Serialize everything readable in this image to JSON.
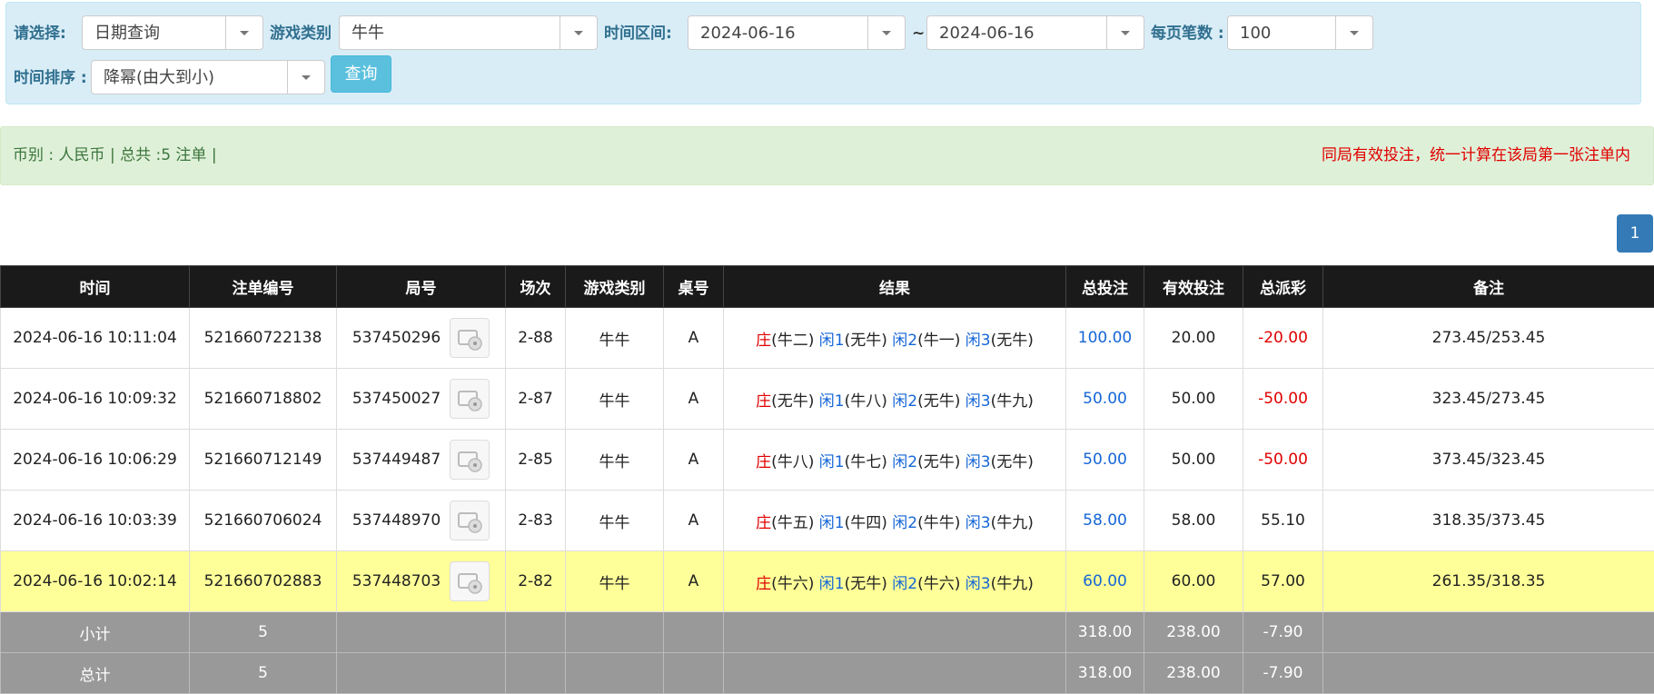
{
  "filters": {
    "select_label": "请选择:",
    "query_type": "日期查询",
    "game_label": "游戏类别",
    "game": "牛牛",
    "range_label": "时间区间:",
    "date_from": "2024-06-16",
    "range_sep": "~",
    "date_to": "2024-06-16",
    "per_page_label": "每页笔数 :",
    "per_page": "100",
    "sort_label": "时间排序 :",
    "sort": "降幂(由大到小)",
    "button": "查询"
  },
  "summary": {
    "text": "币别 : 人民币 | 总共 :5 注单 |",
    "notice": "同局有效投注，统一计算在该局第一张注单内"
  },
  "pagination": [
    "1"
  ],
  "table": {
    "headers": [
      "时间",
      "注单编号",
      "局号",
      "场次",
      "游戏类别",
      "桌号",
      "结果",
      "总投注",
      "有效投注",
      "总派彩",
      "备注"
    ],
    "rows": [
      [
        "2024-06-16 10:11:04",
        "521660722138",
        "537450296",
        "2-88",
        "牛牛",
        "A",
        [
          [
            "庄",
            "(牛二)"
          ],
          [
            "闲1",
            "(无牛)"
          ],
          [
            "闲2",
            "(牛一)"
          ],
          [
            "闲3",
            "(无牛)"
          ]
        ],
        "100.00",
        "20.00",
        "-20.00",
        "273.45/253.45"
      ],
      [
        "2024-06-16 10:09:32",
        "521660718802",
        "537450027",
        "2-87",
        "牛牛",
        "A",
        [
          [
            "庄",
            "(无牛)"
          ],
          [
            "闲1",
            "(牛八)"
          ],
          [
            "闲2",
            "(无牛)"
          ],
          [
            "闲3",
            "(牛九)"
          ]
        ],
        "50.00",
        "50.00",
        "-50.00",
        "323.45/273.45"
      ],
      [
        "2024-06-16 10:06:29",
        "521660712149",
        "537449487",
        "2-85",
        "牛牛",
        "A",
        [
          [
            "庄",
            "(牛八)"
          ],
          [
            "闲1",
            "(牛七)"
          ],
          [
            "闲2",
            "(无牛)"
          ],
          [
            "闲3",
            "(无牛)"
          ]
        ],
        "50.00",
        "50.00",
        "-50.00",
        "373.45/323.45"
      ],
      [
        "2024-06-16 10:03:39",
        "521660706024",
        "537448970",
        "2-83",
        "牛牛",
        "A",
        [
          [
            "庄",
            "(牛五)"
          ],
          [
            "闲1",
            "(牛四)"
          ],
          [
            "闲2",
            "(牛牛)"
          ],
          [
            "闲3",
            "(牛九)"
          ]
        ],
        "58.00",
        "58.00",
        "55.10",
        "318.35/373.45"
      ],
      [
        "2024-06-16 10:02:14",
        "521660702883",
        "537448703",
        "2-82",
        "牛牛",
        "A",
        [
          [
            "庄",
            "(牛六)"
          ],
          [
            "闲1",
            "(无牛)"
          ],
          [
            "闲2",
            "(牛六)"
          ],
          [
            "闲3",
            "(牛九)"
          ]
        ],
        "60.00",
        "60.00",
        "57.00",
        "261.35/318.35"
      ]
    ],
    "subtotal": {
      "label": "小计",
      "count": "5",
      "total_bet": "318.00",
      "valid_bet": "238.00",
      "payout": "-7.90"
    },
    "total": {
      "label": "总计",
      "count": "5",
      "total_bet": "318.00",
      "valid_bet": "238.00",
      "payout": "-7.90"
    }
  }
}
